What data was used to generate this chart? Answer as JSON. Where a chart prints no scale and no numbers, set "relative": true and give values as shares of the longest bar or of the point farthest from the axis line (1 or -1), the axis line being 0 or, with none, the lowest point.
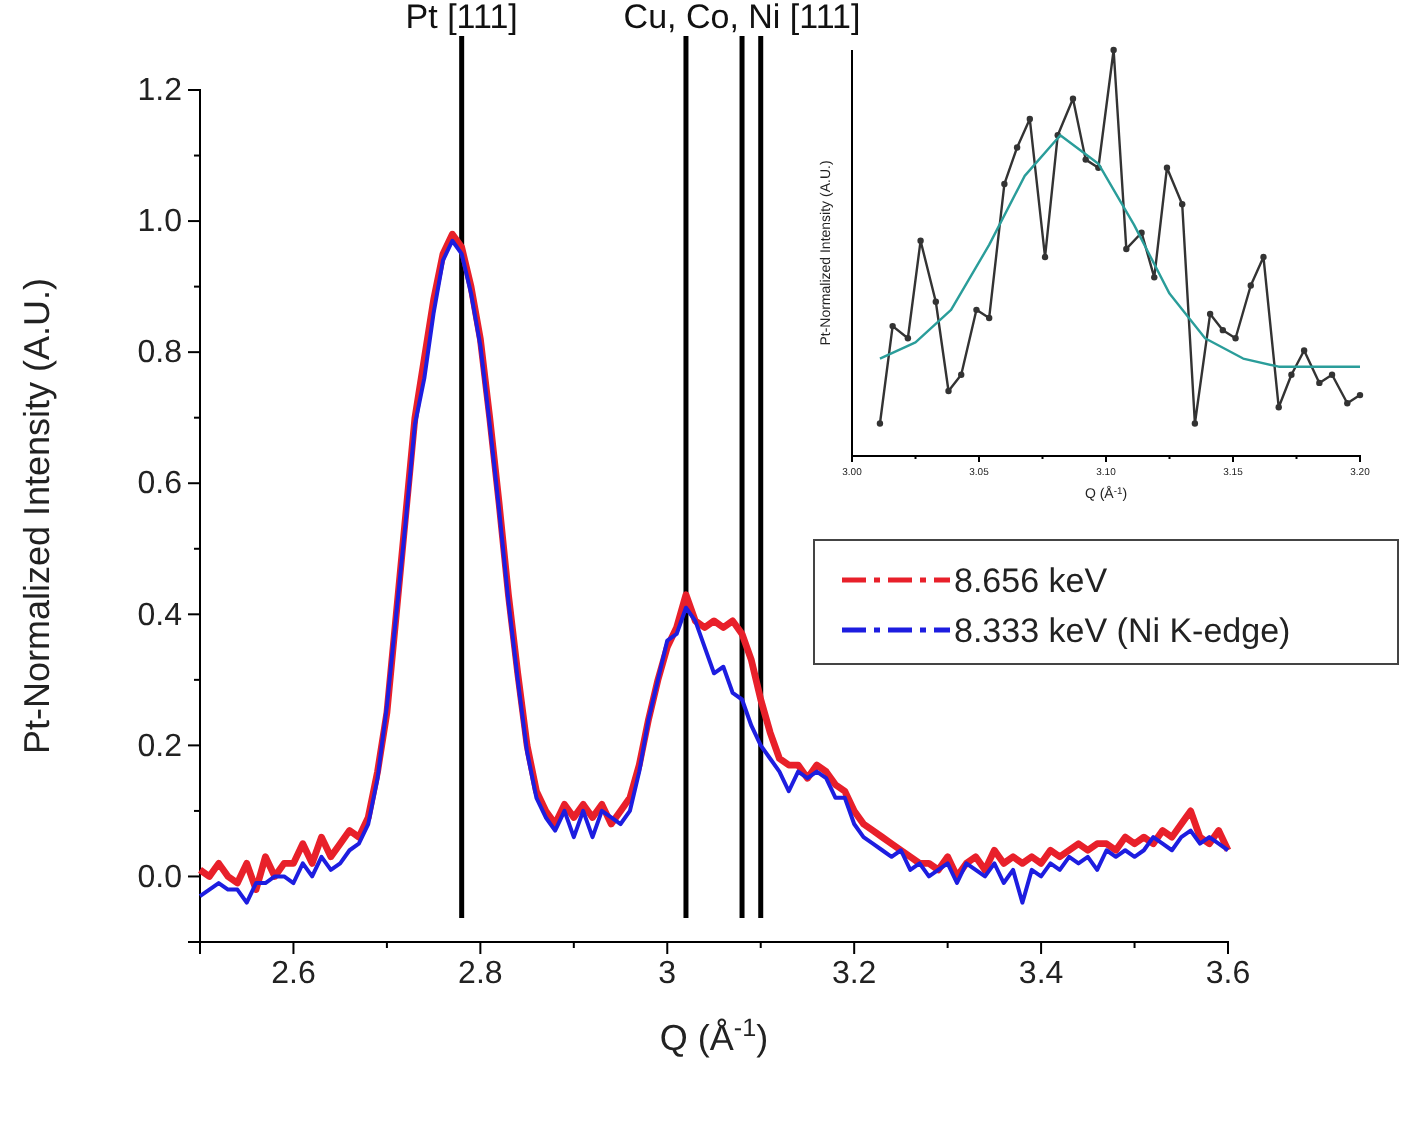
{
  "chart_data": [
    {
      "type": "line",
      "xlabel": "Q (Å$^{-1}$)",
      "ylabel": "Pt-Normalized Intensity (A.U.)",
      "xlim": [
        2.5,
        3.6
      ],
      "ylim": [
        -0.1,
        1.2
      ],
      "xticks": [
        2.6,
        2.8,
        3.0,
        3.2,
        3.4,
        3.6
      ],
      "yticks": [
        {
          "value": 0,
          "label": "0.0"
        },
        0.2,
        0.4,
        0.6,
        0.8,
        {
          "value": 1,
          "label": "1.0"
        },
        1.2
      ],
      "legend": "right",
      "ref_lines": [
        {
          "axis": "x",
          "value": 2.78,
          "label": "Pt [111]",
          "color": "#000000"
        },
        {
          "axis": "x",
          "value": 3.02,
          "label": null,
          "color": "#000000"
        },
        {
          "axis": "x",
          "value": 3.08,
          "label": "Cu, Co, Ni [111]",
          "color": "#000000"
        },
        {
          "axis": "x",
          "value": 3.1,
          "label": null,
          "color": "#000000"
        }
      ],
      "x": [
        2.5,
        2.51,
        2.52,
        2.53,
        2.54,
        2.55,
        2.56,
        2.57,
        2.58,
        2.59,
        2.6,
        2.61,
        2.62,
        2.63,
        2.64,
        2.65,
        2.66,
        2.67,
        2.68,
        2.69,
        2.7,
        2.71,
        2.72,
        2.73,
        2.74,
        2.75,
        2.76,
        2.77,
        2.78,
        2.79,
        2.8,
        2.81,
        2.82,
        2.83,
        2.84,
        2.85,
        2.86,
        2.87,
        2.88,
        2.89,
        2.9,
        2.91,
        2.92,
        2.93,
        2.94,
        2.95,
        2.96,
        2.97,
        2.98,
        2.99,
        3.0,
        3.01,
        3.02,
        3.03,
        3.04,
        3.05,
        3.06,
        3.07,
        3.08,
        3.09,
        3.1,
        3.11,
        3.12,
        3.13,
        3.14,
        3.15,
        3.16,
        3.17,
        3.18,
        3.19,
        3.2,
        3.21,
        3.22,
        3.23,
        3.24,
        3.25,
        3.26,
        3.27,
        3.28,
        3.29,
        3.3,
        3.31,
        3.32,
        3.33,
        3.34,
        3.35,
        3.36,
        3.37,
        3.38,
        3.39,
        3.4,
        3.41,
        3.42,
        3.43,
        3.44,
        3.45,
        3.46,
        3.47,
        3.48,
        3.49,
        3.5,
        3.51,
        3.52,
        3.53,
        3.54,
        3.55,
        3.56,
        3.57,
        3.58,
        3.59,
        3.6
      ],
      "series": [
        {
          "name": "8.656 keV",
          "color": "#e8202a",
          "values": [
            0.01,
            0.0,
            0.02,
            0.0,
            -0.01,
            0.02,
            -0.02,
            0.03,
            0.0,
            0.02,
            0.02,
            0.05,
            0.02,
            0.06,
            0.03,
            0.05,
            0.07,
            0.06,
            0.09,
            0.16,
            0.25,
            0.4,
            0.55,
            0.7,
            0.79,
            0.88,
            0.95,
            0.98,
            0.96,
            0.9,
            0.82,
            0.7,
            0.57,
            0.43,
            0.31,
            0.2,
            0.13,
            0.1,
            0.08,
            0.11,
            0.09,
            0.11,
            0.09,
            0.11,
            0.08,
            0.1,
            0.12,
            0.17,
            0.24,
            0.3,
            0.35,
            0.38,
            0.43,
            0.39,
            0.38,
            0.39,
            0.38,
            0.39,
            0.37,
            0.33,
            0.27,
            0.22,
            0.18,
            0.17,
            0.17,
            0.15,
            0.17,
            0.16,
            0.14,
            0.13,
            0.1,
            0.08,
            0.07,
            0.06,
            0.05,
            0.04,
            0.03,
            0.02,
            0.02,
            0.01,
            0.03,
            0.0,
            0.02,
            0.03,
            0.01,
            0.04,
            0.02,
            0.03,
            0.02,
            0.03,
            0.02,
            0.04,
            0.03,
            0.04,
            0.05,
            0.04,
            0.05,
            0.05,
            0.04,
            0.06,
            0.05,
            0.06,
            0.05,
            0.07,
            0.06,
            0.08,
            0.1,
            0.06,
            0.05,
            0.07,
            0.04
          ]
        },
        {
          "name": "8.333 keV (Ni K-edge)",
          "color": "#1d1de0",
          "values": [
            -0.03,
            -0.02,
            -0.01,
            -0.02,
            -0.02,
            -0.04,
            -0.01,
            -0.01,
            0.0,
            0.0,
            -0.01,
            0.02,
            0.0,
            0.03,
            0.01,
            0.02,
            0.04,
            0.05,
            0.08,
            0.15,
            0.26,
            0.4,
            0.54,
            0.69,
            0.76,
            0.86,
            0.94,
            0.97,
            0.95,
            0.89,
            0.81,
            0.69,
            0.56,
            0.42,
            0.3,
            0.19,
            0.12,
            0.09,
            0.07,
            0.1,
            0.06,
            0.1,
            0.06,
            0.1,
            0.09,
            0.08,
            0.1,
            0.16,
            0.24,
            0.3,
            0.36,
            0.37,
            0.41,
            0.39,
            0.35,
            0.31,
            0.32,
            0.28,
            0.27,
            0.23,
            0.2,
            0.18,
            0.16,
            0.13,
            0.16,
            0.15,
            0.16,
            0.15,
            0.12,
            0.12,
            0.08,
            0.06,
            0.05,
            0.04,
            0.03,
            0.04,
            0.01,
            0.02,
            0.0,
            0.01,
            0.02,
            -0.01,
            0.02,
            0.01,
            0.0,
            0.02,
            -0.01,
            0.01,
            -0.04,
            0.01,
            0.0,
            0.02,
            0.01,
            0.03,
            0.02,
            0.03,
            0.01,
            0.04,
            0.03,
            0.04,
            0.03,
            0.04,
            0.06,
            0.05,
            0.04,
            0.06,
            0.07,
            0.05,
            0.06,
            0.05,
            0.04
          ]
        }
      ]
    },
    {
      "type": "line",
      "relative": true,
      "xlabel": "Q (Å$^{-1}$)",
      "ylabel": "Pt-Normalized Intensity (A.U.)",
      "xlim": [
        3.0,
        3.2
      ],
      "xticks": [
        {
          "value": 3.0,
          "label": "3.00"
        },
        3.05,
        {
          "value": 3.1,
          "label": "3.10"
        },
        3.15,
        {
          "value": 3.2,
          "label": "3.20"
        }
      ],
      "legend": false,
      "series": [
        {
          "color": "#333333",
          "marker": "circle",
          "x": [
            3.011,
            3.016,
            3.022,
            3.027,
            3.033,
            3.038,
            3.043,
            3.049,
            3.054,
            3.06,
            3.065,
            3.07,
            3.076,
            3.081,
            3.087,
            3.092,
            3.097,
            3.103,
            3.108,
            3.114,
            3.119,
            3.124,
            3.13,
            3.135,
            3.141,
            3.146,
            3.151,
            3.157,
            3.162,
            3.168,
            3.173,
            3.178,
            3.184,
            3.189,
            3.195,
            3.2
          ],
          "values": [
            0.08,
            0.32,
            0.29,
            0.53,
            0.38,
            0.16,
            0.2,
            0.36,
            0.34,
            0.67,
            0.76,
            0.83,
            0.49,
            0.79,
            0.88,
            0.73,
            0.71,
            1.0,
            0.51,
            0.55,
            0.44,
            0.71,
            0.62,
            0.08,
            0.35,
            0.31,
            0.29,
            0.42,
            0.49,
            0.12,
            0.2,
            0.26,
            0.18,
            0.2,
            0.13,
            0.15
          ]
        },
        {
          "color": "#2a9d9a",
          "marker": "none",
          "x": [
            3.011,
            3.025,
            3.039,
            3.054,
            3.068,
            3.082,
            3.097,
            3.111,
            3.125,
            3.139,
            3.154,
            3.168,
            3.182,
            3.2
          ],
          "values": [
            0.24,
            0.28,
            0.36,
            0.52,
            0.69,
            0.79,
            0.72,
            0.57,
            0.4,
            0.29,
            0.24,
            0.22,
            0.22,
            0.22
          ]
        }
      ]
    }
  ]
}
